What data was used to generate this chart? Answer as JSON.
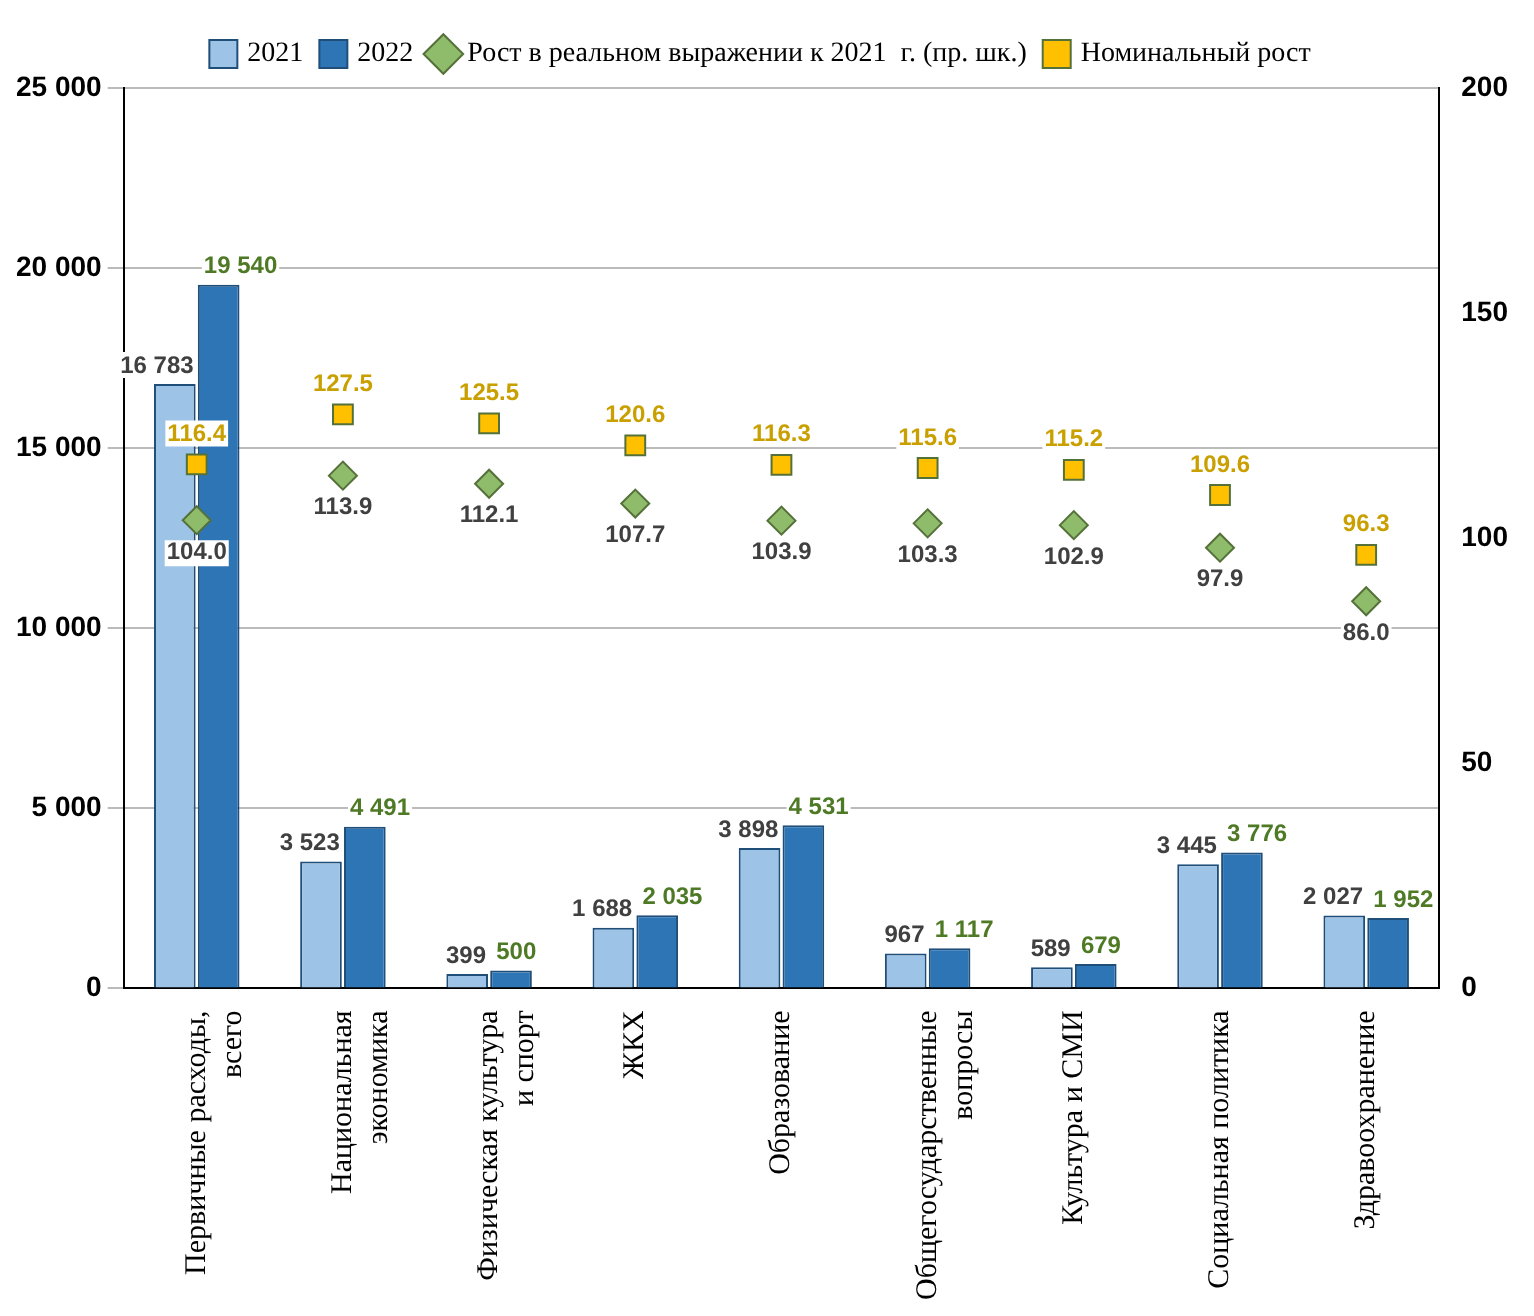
{
  "chart_data": {
    "type": "bar",
    "categories": [
      "Первичные расходы,\nвсего",
      "Национальная\nэкономика",
      "Физическая культура\nи спорт",
      "ЖКХ",
      "Образование",
      "Общегосударственные\nвопросы",
      "Культура и СМИ",
      "Социальная политика",
      "Здравоохранение"
    ],
    "series": [
      {
        "name": "2021",
        "type": "bar",
        "color": "#9dc3e6",
        "values": [
          16783,
          3523,
          399,
          1688,
          3898,
          967,
          589,
          3445,
          2027
        ],
        "value_labels": [
          "16 783",
          "3 523",
          "399",
          "1 688",
          "3 898",
          "967",
          "589",
          "3 445",
          "2 027"
        ]
      },
      {
        "name": "2022",
        "type": "bar",
        "color": "#2e75b6",
        "values": [
          19540,
          4491,
          500,
          2035,
          4531,
          1117,
          679,
          3776,
          1952
        ],
        "value_labels": [
          "19 540",
          "4 491",
          "500",
          "2 035",
          "4 531",
          "1 117",
          "679",
          "3 776",
          "1 952"
        ]
      },
      {
        "name": "Рост в реальном выражении к 2021  г. (пр. шк.)",
        "type": "scatter",
        "axis": "y2",
        "marker": "diamond",
        "color": "#8fbc6b",
        "values": [
          104.0,
          113.9,
          112.1,
          107.7,
          103.9,
          103.3,
          102.9,
          97.9,
          86.0
        ],
        "value_labels": [
          "104.0",
          "113.9",
          "112.1",
          "107.7",
          "103.9",
          "103.3",
          "102.9",
          "97.9",
          "86.0"
        ]
      },
      {
        "name": "Номинальный рост",
        "type": "scatter",
        "axis": "y2",
        "marker": "square",
        "color": "#ffc000",
        "values": [
          116.4,
          127.5,
          125.5,
          120.6,
          116.3,
          115.6,
          115.2,
          109.6,
          96.3
        ],
        "value_labels": [
          "116.4",
          "127.5",
          "125.5",
          "120.6",
          "116.3",
          "115.6",
          "115.2",
          "109.6",
          "96.3"
        ]
      }
    ],
    "ylim": [
      0,
      25000
    ],
    "yticks": [
      0,
      {
        "value": 5000,
        "label": "5 000"
      },
      {
        "value": 10000,
        "label": "10 000"
      },
      {
        "value": 15000,
        "label": "15 000"
      },
      {
        "value": 20000,
        "label": "20 000"
      },
      {
        "value": 25000,
        "label": "25 000"
      }
    ],
    "y2lim": [
      0,
      200
    ],
    "y2ticks": [
      0,
      50,
      100,
      150,
      200
    ],
    "grid": "y",
    "legend": "top"
  }
}
